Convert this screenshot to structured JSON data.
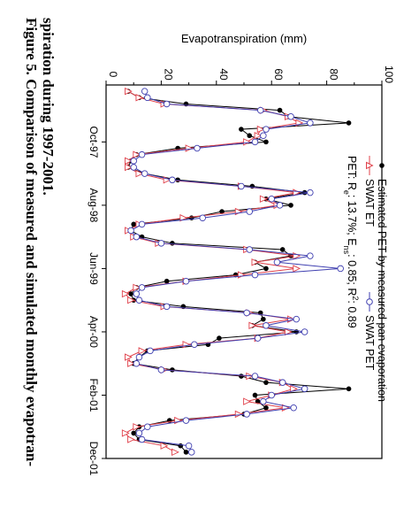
{
  "caption": {
    "line1": "Figure 5. Comparison of measured and simulated monthly evapotran-",
    "line2": "spiration during 1997-2001."
  },
  "chart_data": {
    "type": "line",
    "title": "",
    "xlabel": "",
    "ylabel": "Evapotranspiration (mm)",
    "ylim": [
      0,
      100
    ],
    "yticks": [
      "0",
      "20",
      "40",
      "60",
      "80",
      "100"
    ],
    "xlim": [
      1,
      60
    ],
    "xtick_labels": [
      {
        "label": "Oct-97",
        "x": 10
      },
      {
        "label": "Aug-98",
        "x": 20
      },
      {
        "label": "Jun-99",
        "x": 30
      },
      {
        "label": "Apr-00",
        "x": 40
      },
      {
        "label": "Feb-01",
        "x": 50
      },
      {
        "label": "Dec-01",
        "x": 60
      }
    ],
    "legend": {
      "placement": "top-right",
      "entries": [
        {
          "label": "Estimated PET by measured pan evaporation",
          "series": "pan"
        },
        {
          "label": "SWAT ET",
          "series": "swat_et"
        },
        {
          "label": "SWAT PET",
          "series": "swat_pet"
        }
      ],
      "stats_prefix": "PET: R",
      "stats_r_sub": "e",
      "stats_mid1": ": 13.7%; E",
      "stats_e_sub": "ns",
      "stats_mid2": ": 0.85; R",
      "stats_r2_sup": "2",
      "stats_end": ": 0.89"
    },
    "series": [
      {
        "key": "pan",
        "color": "#000000",
        "marker": "filled-circle",
        "x": [
          2,
          3,
          4,
          5,
          6,
          7,
          8,
          9,
          10,
          11,
          12,
          13,
          14,
          15,
          16,
          17,
          18,
          19,
          20,
          21,
          22,
          23,
          24,
          25,
          26,
          27,
          28,
          29,
          30,
          31,
          32,
          33,
          34,
          35,
          36,
          37,
          38,
          39,
          40,
          41,
          42,
          43,
          44,
          45,
          46,
          47,
          48,
          49,
          50,
          51,
          52,
          53,
          54,
          55,
          56,
          57,
          58,
          59
        ],
        "values": [
          8,
          12,
          29,
          63,
          66,
          88,
          49,
          52,
          58,
          26,
          11,
          9,
          8,
          14,
          26,
          53,
          72,
          58,
          67,
          42,
          31,
          10,
          9,
          13,
          24,
          64,
          67,
          54,
          58,
          47,
          22,
          11,
          9,
          10,
          28,
          56,
          57,
          53,
          69,
          41,
          37,
          15,
          12,
          10,
          24,
          49,
          58,
          88,
          54,
          55,
          58,
          50,
          23,
          12,
          10,
          12,
          27,
          29
        ]
      },
      {
        "key": "swat_et",
        "color": "#e0404a",
        "marker": "open-triangle",
        "x": [
          2,
          3,
          4,
          5,
          6,
          7,
          8,
          9,
          10,
          11,
          12,
          13,
          14,
          15,
          16,
          17,
          18,
          19,
          20,
          21,
          22,
          23,
          24,
          25,
          26,
          27,
          28,
          29,
          30,
          31,
          32,
          33,
          34,
          35,
          36,
          37,
          38,
          39,
          40,
          41,
          42,
          43,
          44,
          45,
          46,
          47,
          48,
          49,
          50,
          51,
          52,
          53,
          54,
          55,
          56,
          57,
          58,
          59
        ],
        "values": [
          8,
          12,
          21,
          57,
          66,
          70,
          56,
          55,
          51,
          30,
          11,
          8,
          8,
          12,
          22,
          49,
          69,
          57,
          62,
          48,
          28,
          12,
          8,
          10,
          19,
          51,
          69,
          54,
          69,
          49,
          29,
          11,
          7,
          9,
          21,
          52,
          67,
          53,
          66,
          55,
          29,
          13,
          8,
          9,
          21,
          52,
          64,
          68,
          60,
          51,
          65,
          48,
          26,
          11,
          7,
          9,
          21,
          25
        ]
      },
      {
        "key": "swat_pet",
        "color": "#3f3fb0",
        "marker": "open-circle",
        "x": [
          2,
          3,
          4,
          5,
          6,
          7,
          8,
          9,
          10,
          11,
          12,
          13,
          14,
          15,
          16,
          17,
          18,
          19,
          20,
          21,
          22,
          23,
          24,
          25,
          26,
          27,
          28,
          29,
          30,
          31,
          32,
          33,
          34,
          35,
          36,
          37,
          38,
          39,
          40,
          41,
          42,
          43,
          44,
          45,
          46,
          47,
          48,
          49,
          50,
          51,
          52,
          53,
          54,
          55,
          56,
          57,
          58,
          59
        ],
        "values": [
          14,
          15,
          22,
          56,
          67,
          74,
          58,
          57,
          54,
          33,
          13,
          10,
          10,
          14,
          24,
          49,
          74,
          60,
          63,
          52,
          35,
          13,
          9,
          11,
          20,
          52,
          74,
          62,
          85,
          54,
          29,
          13,
          11,
          12,
          22,
          51,
          69,
          58,
          72,
          55,
          32,
          16,
          12,
          11,
          20,
          54,
          64,
          72,
          60,
          57,
          68,
          51,
          29,
          15,
          12,
          13,
          30,
          31
        ]
      }
    ]
  }
}
